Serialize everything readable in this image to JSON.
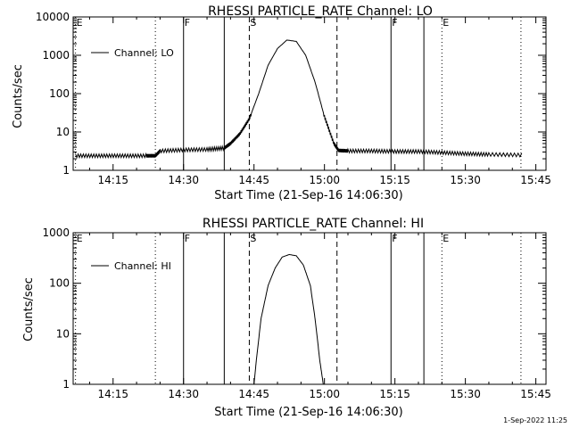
{
  "footer": {
    "timestamp": "1-Sep-2022 11:25"
  },
  "chart_data": [
    {
      "type": "line",
      "title": "RHESSI PARTICLE_RATE Channel: LO",
      "xlabel": "Start Time (21-Sep-16 14:06:30)",
      "ylabel": "Counts/sec",
      "yscale": "log",
      "ylim": [
        1,
        10000
      ],
      "xlim": [
        "14:06:30",
        "15:47:10"
      ],
      "x_ticks": [
        "14:15",
        "14:30",
        "14:45",
        "15:00",
        "15:15",
        "15:30",
        "15:45"
      ],
      "y_ticks": [
        "1",
        "10",
        "100",
        "1000",
        "10000"
      ],
      "legend": {
        "location": "top-left",
        "entries": [
          "Channel: LO"
        ]
      },
      "markers": [
        {
          "time": "14:07:00",
          "style": "dotted",
          "label": "E"
        },
        {
          "time": "14:24:00",
          "style": "dotted",
          "label": ""
        },
        {
          "time": "14:30:00",
          "style": "solid",
          "label": "F"
        },
        {
          "time": "14:38:40",
          "style": "solid",
          "label": ""
        },
        {
          "time": "14:44:00",
          "style": "dashed",
          "label": "S"
        },
        {
          "time": "15:02:40",
          "style": "dashed",
          "label": ""
        },
        {
          "time": "15:14:10",
          "style": "solid",
          "label": "F"
        },
        {
          "time": "15:21:10",
          "style": "solid",
          "label": ""
        },
        {
          "time": "15:25:00",
          "style": "dotted",
          "label": "E"
        },
        {
          "time": "15:41:50",
          "style": "dotted",
          "label": ""
        }
      ],
      "series": [
        {
          "name": "Channel: LO",
          "x": [
            "14:07:00",
            "14:12:00",
            "14:17:00",
            "14:22:00",
            "14:24:00",
            "14:25:00",
            "14:30:00",
            "14:35:00",
            "14:38:40",
            "14:40:00",
            "14:42:00",
            "14:44:00",
            "14:46:00",
            "14:48:00",
            "14:50:00",
            "14:52:00",
            "14:54:00",
            "14:56:00",
            "14:58:00",
            "15:00:00",
            "15:02:00",
            "15:03:00",
            "15:05:00",
            "15:10:00",
            "15:15:00",
            "15:20:00",
            "15:25:00",
            "15:30:00",
            "15:35:00",
            "15:42:00"
          ],
          "y": [
            2.4,
            2.4,
            2.4,
            2.4,
            2.4,
            3.2,
            3.4,
            3.5,
            3.8,
            5,
            9,
            22,
            100,
            550,
            1500,
            2500,
            2300,
            1000,
            200,
            25,
            5,
            3.3,
            3.2,
            3.2,
            3.1,
            3.1,
            2.9,
            2.7,
            2.6,
            2.5
          ]
        }
      ]
    },
    {
      "type": "line",
      "title": "RHESSI PARTICLE_RATE Channel: HI",
      "xlabel": "Start Time (21-Sep-16 14:06:30)",
      "ylabel": "Counts/sec",
      "yscale": "log",
      "ylim": [
        1,
        1000
      ],
      "xlim": [
        "14:06:30",
        "15:47:10"
      ],
      "x_ticks": [
        "14:15",
        "14:30",
        "14:45",
        "15:00",
        "15:15",
        "15:30",
        "15:45"
      ],
      "y_ticks": [
        "1",
        "10",
        "100",
        "1000"
      ],
      "legend": {
        "location": "top-left",
        "entries": [
          "Channel: HI"
        ]
      },
      "markers": [
        {
          "time": "14:07:00",
          "style": "dotted",
          "label": "E"
        },
        {
          "time": "14:24:00",
          "style": "dotted",
          "label": ""
        },
        {
          "time": "14:30:00",
          "style": "solid",
          "label": "F"
        },
        {
          "time": "14:38:40",
          "style": "solid",
          "label": ""
        },
        {
          "time": "14:44:00",
          "style": "dashed",
          "label": "S"
        },
        {
          "time": "15:02:40",
          "style": "dashed",
          "label": ""
        },
        {
          "time": "15:14:10",
          "style": "solid",
          "label": "F"
        },
        {
          "time": "15:21:10",
          "style": "solid",
          "label": ""
        },
        {
          "time": "15:25:00",
          "style": "dotted",
          "label": "E"
        },
        {
          "time": "15:41:50",
          "style": "dotted",
          "label": ""
        }
      ],
      "series": [
        {
          "name": "Channel: HI",
          "x": [
            "14:45:00",
            "14:45:30",
            "14:46:30",
            "14:48:00",
            "14:49:30",
            "14:51:00",
            "14:52:30",
            "14:54:00",
            "14:55:30",
            "14:57:00",
            "14:58:00",
            "14:59:00",
            "14:59:45"
          ],
          "y": [
            1,
            3,
            20,
            90,
            200,
            330,
            370,
            350,
            230,
            90,
            20,
            3,
            1
          ]
        }
      ]
    }
  ]
}
